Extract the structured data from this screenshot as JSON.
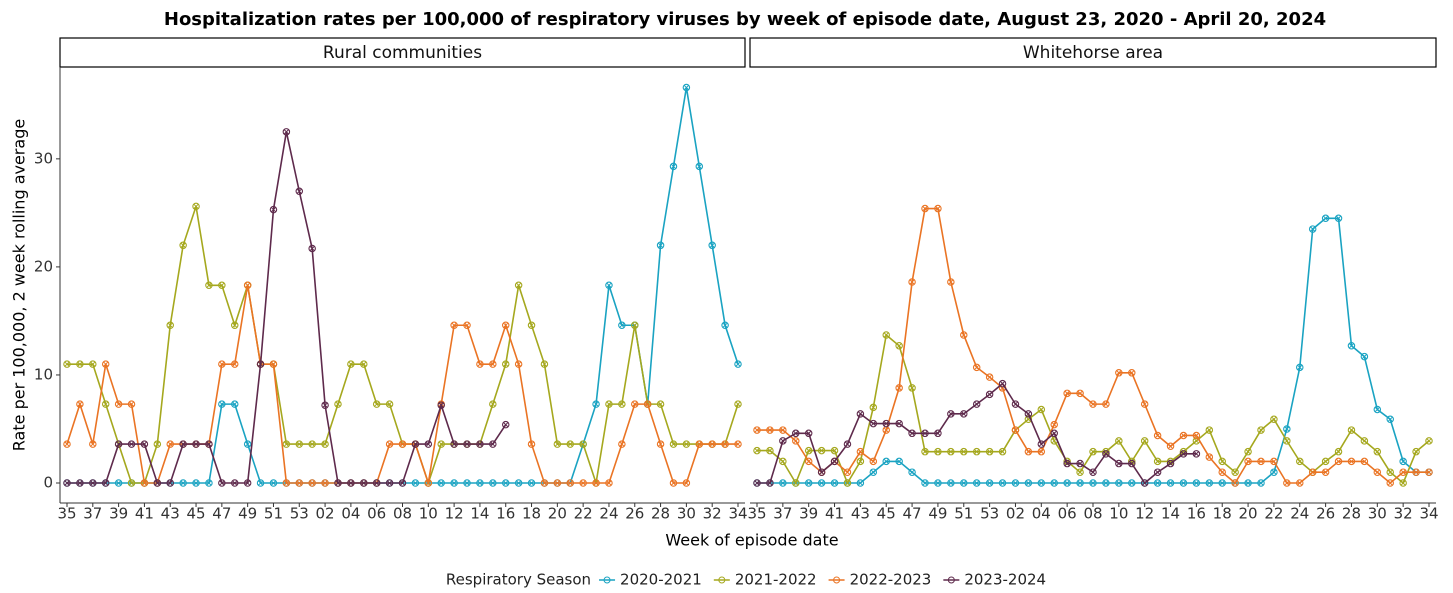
{
  "title": "Hospitalization rates per 100,000 of respiratory viruses by week of episode date, August 23, 2020 - April 20, 2024",
  "x_label": "Week of episode date",
  "y_label": "Rate per 100,000, 2 week rolling average",
  "legend_title": "Respiratory Season",
  "chart_data": [
    {
      "type": "line",
      "subtitle": "Rural communities",
      "categories": [
        "35",
        null,
        "37",
        null,
        "39",
        null,
        "41",
        null,
        "43",
        null,
        "45",
        null,
        "47",
        null,
        "49",
        null,
        "51",
        null,
        "53",
        null,
        "02",
        null,
        "04",
        null,
        "06",
        null,
        "08",
        null,
        "10",
        null,
        "12",
        null,
        "14",
        null,
        "16",
        null,
        "18",
        null,
        "20",
        null,
        "22",
        null,
        "24",
        null,
        "26",
        null,
        "28",
        null,
        "30",
        null,
        "32",
        null,
        "34"
      ],
      "ylim": [
        -1.85,
        38.5
      ],
      "yticks": [
        0,
        10,
        20,
        30
      ],
      "series": [
        {
          "name": "2020-2021",
          "color": "#1aa3c2",
          "values": [
            0,
            0,
            0,
            0,
            0,
            0,
            0,
            0,
            0,
            0,
            0,
            0,
            7.3,
            7.3,
            3.6,
            0,
            0,
            0,
            0,
            0,
            0,
            0,
            0,
            0,
            0,
            0,
            0,
            0,
            0,
            0,
            0,
            0,
            0,
            0,
            0,
            0,
            0,
            0,
            0,
            0,
            3.6,
            7.3,
            18.3,
            14.6,
            14.6,
            7.3,
            22,
            29.3,
            36.6,
            29.3,
            22,
            14.6,
            11
          ]
        },
        {
          "name": "2021-2022",
          "color": "#a5a81e",
          "values": [
            11,
            11,
            11,
            7.3,
            3.6,
            0,
            0,
            3.6,
            14.6,
            22,
            25.6,
            18.3,
            18.3,
            14.6,
            18.3,
            11,
            11,
            3.6,
            3.6,
            3.6,
            3.6,
            7.3,
            11,
            11,
            7.3,
            7.3,
            3.6,
            3.6,
            0,
            3.6,
            3.6,
            3.6,
            3.6,
            7.3,
            11,
            18.3,
            14.6,
            11,
            3.6,
            3.6,
            3.6,
            0,
            7.3,
            7.3,
            14.6,
            7.3,
            7.3,
            3.6,
            3.6,
            3.6,
            3.6,
            3.6,
            7.3
          ]
        },
        {
          "name": "2022-2023",
          "color": "#ea7424",
          "values": [
            3.6,
            7.3,
            3.6,
            11,
            7.3,
            7.3,
            0,
            0,
            3.6,
            3.6,
            3.6,
            3.6,
            11,
            11,
            18.3,
            11,
            11,
            0,
            0,
            0,
            0,
            0,
            0,
            0,
            0,
            3.6,
            3.6,
            3.6,
            0,
            7.3,
            14.6,
            14.6,
            11,
            11,
            14.6,
            11,
            3.6,
            0,
            0,
            0,
            0,
            0,
            0,
            3.6,
            7.3,
            7.3,
            3.6,
            0,
            0,
            3.6,
            3.6,
            3.6,
            3.6
          ]
        },
        {
          "name": "2023-2024",
          "color": "#5e2a4c",
          "values": [
            0,
            0,
            0,
            0,
            3.6,
            3.6,
            3.6,
            0,
            0,
            3.6,
            3.6,
            3.6,
            0,
            0,
            0,
            11,
            25.3,
            32.5,
            27,
            21.7,
            7.2,
            0,
            0,
            0,
            0,
            0,
            0,
            3.6,
            3.6,
            7.2,
            3.6,
            3.6,
            3.6,
            3.6,
            5.4,
            null,
            null,
            null,
            null,
            null,
            null,
            null,
            null,
            null,
            null,
            null,
            null,
            null,
            null,
            null,
            null,
            null,
            null
          ]
        }
      ]
    },
    {
      "type": "line",
      "subtitle": "Whitehorse area",
      "categories": [
        "35",
        null,
        "37",
        null,
        "39",
        null,
        "41",
        null,
        "43",
        null,
        "45",
        null,
        "47",
        null,
        "49",
        null,
        "51",
        null,
        "53",
        null,
        "02",
        null,
        "04",
        null,
        "06",
        null,
        "08",
        null,
        "10",
        null,
        "12",
        null,
        "14",
        null,
        "16",
        null,
        "18",
        null,
        "20",
        null,
        "22",
        null,
        "24",
        null,
        "26",
        null,
        "28",
        null,
        "30",
        null,
        "32",
        null,
        "34"
      ],
      "ylim": [
        -1.85,
        38.5
      ],
      "series": [
        {
          "color": "#1aa3c2",
          "values": [
            0,
            0,
            0,
            0,
            0,
            0,
            0,
            0,
            0,
            1,
            2,
            2,
            1,
            0,
            0,
            0,
            0,
            0,
            0,
            0,
            0,
            0,
            0,
            0,
            0,
            0,
            0,
            0,
            0,
            0,
            0,
            0,
            0,
            0,
            0,
            0,
            0,
            0,
            0,
            0,
            1,
            5,
            10.7,
            23.5,
            24.5,
            24.5,
            12.7,
            11.7,
            6.8,
            5.9,
            2,
            1,
            1
          ]
        },
        {
          "color": "#a5a81e",
          "values": [
            3,
            3,
            2,
            0,
            3,
            3,
            3,
            0,
            2,
            7,
            13.7,
            12.7,
            8.8,
            2.9,
            2.9,
            2.9,
            2.9,
            2.9,
            2.9,
            2.9,
            4.9,
            5.9,
            6.8,
            3.9,
            2,
            1,
            2.9,
            2.9,
            3.9,
            2,
            3.9,
            2,
            2,
            2.9,
            3.9,
            4.9,
            2,
            1,
            2.9,
            4.9,
            5.9,
            3.9,
            2,
            1,
            2,
            2.9,
            4.9,
            3.9,
            2.9,
            1,
            0,
            2.9,
            3.9
          ]
        },
        {
          "color": "#ea7424",
          "values": [
            4.9,
            4.9,
            4.9,
            3.9,
            2,
            1,
            2,
            1,
            2.9,
            2,
            4.9,
            8.8,
            18.6,
            25.4,
            25.4,
            18.6,
            13.7,
            10.7,
            9.8,
            8.8,
            4.9,
            2.9,
            2.9,
            5.4,
            8.3,
            8.3,
            7.3,
            7.3,
            10.2,
            10.2,
            7.3,
            4.4,
            3.4,
            4.4,
            4.4,
            2.4,
            1,
            0,
            2,
            2,
            2,
            0,
            0,
            1,
            1,
            2,
            2,
            2,
            1,
            0,
            1,
            1,
            1
          ]
        },
        {
          "color": "#5e2a4c",
          "values": [
            0,
            0,
            3.9,
            4.6,
            4.6,
            1,
            2,
            3.6,
            6.4,
            5.5,
            5.5,
            5.5,
            4.6,
            4.6,
            4.6,
            6.4,
            6.4,
            7.3,
            8.2,
            9.2,
            7.3,
            6.4,
            3.6,
            4.6,
            1.8,
            1.8,
            1,
            2.7,
            1.8,
            1.8,
            0,
            1,
            1.8,
            2.7,
            2.7,
            null,
            null,
            null,
            null,
            null,
            null,
            null,
            null,
            null,
            null,
            null,
            null,
            null,
            null,
            null,
            null,
            null,
            null
          ]
        }
      ]
    }
  ]
}
